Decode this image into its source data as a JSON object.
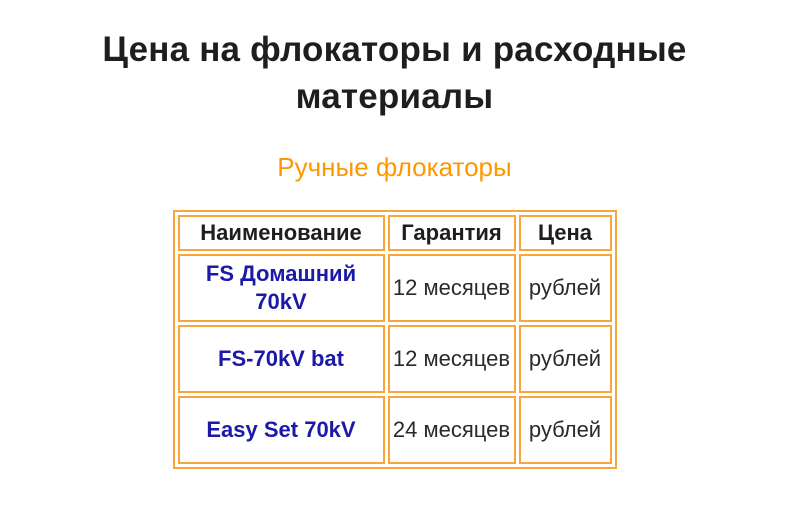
{
  "page": {
    "title": "Цена на флокаторы и расходные материалы",
    "subtitle": "Ручные флокаторы"
  },
  "table": {
    "headers": {
      "name": "Наименование",
      "warranty": "Гарантия",
      "price": "Цена"
    },
    "rows": [
      {
        "name": "FS Домашний 70kV",
        "warranty": "12 месяцев",
        "price": "рублей"
      },
      {
        "name": "FS-70kV bat",
        "warranty": "12 месяцев",
        "price": "рублей"
      },
      {
        "name": "Easy Set 70kV",
        "warranty": "24 месяцев",
        "price": "рублей"
      }
    ]
  },
  "colors": {
    "title_text": "#1e1e1e",
    "subtitle_orange": "#ff9800",
    "table_border_orange": "#f6a63a",
    "product_link_blue": "#1a1aa6",
    "cell_text": "#2a2a2a",
    "background": "#ffffff"
  }
}
